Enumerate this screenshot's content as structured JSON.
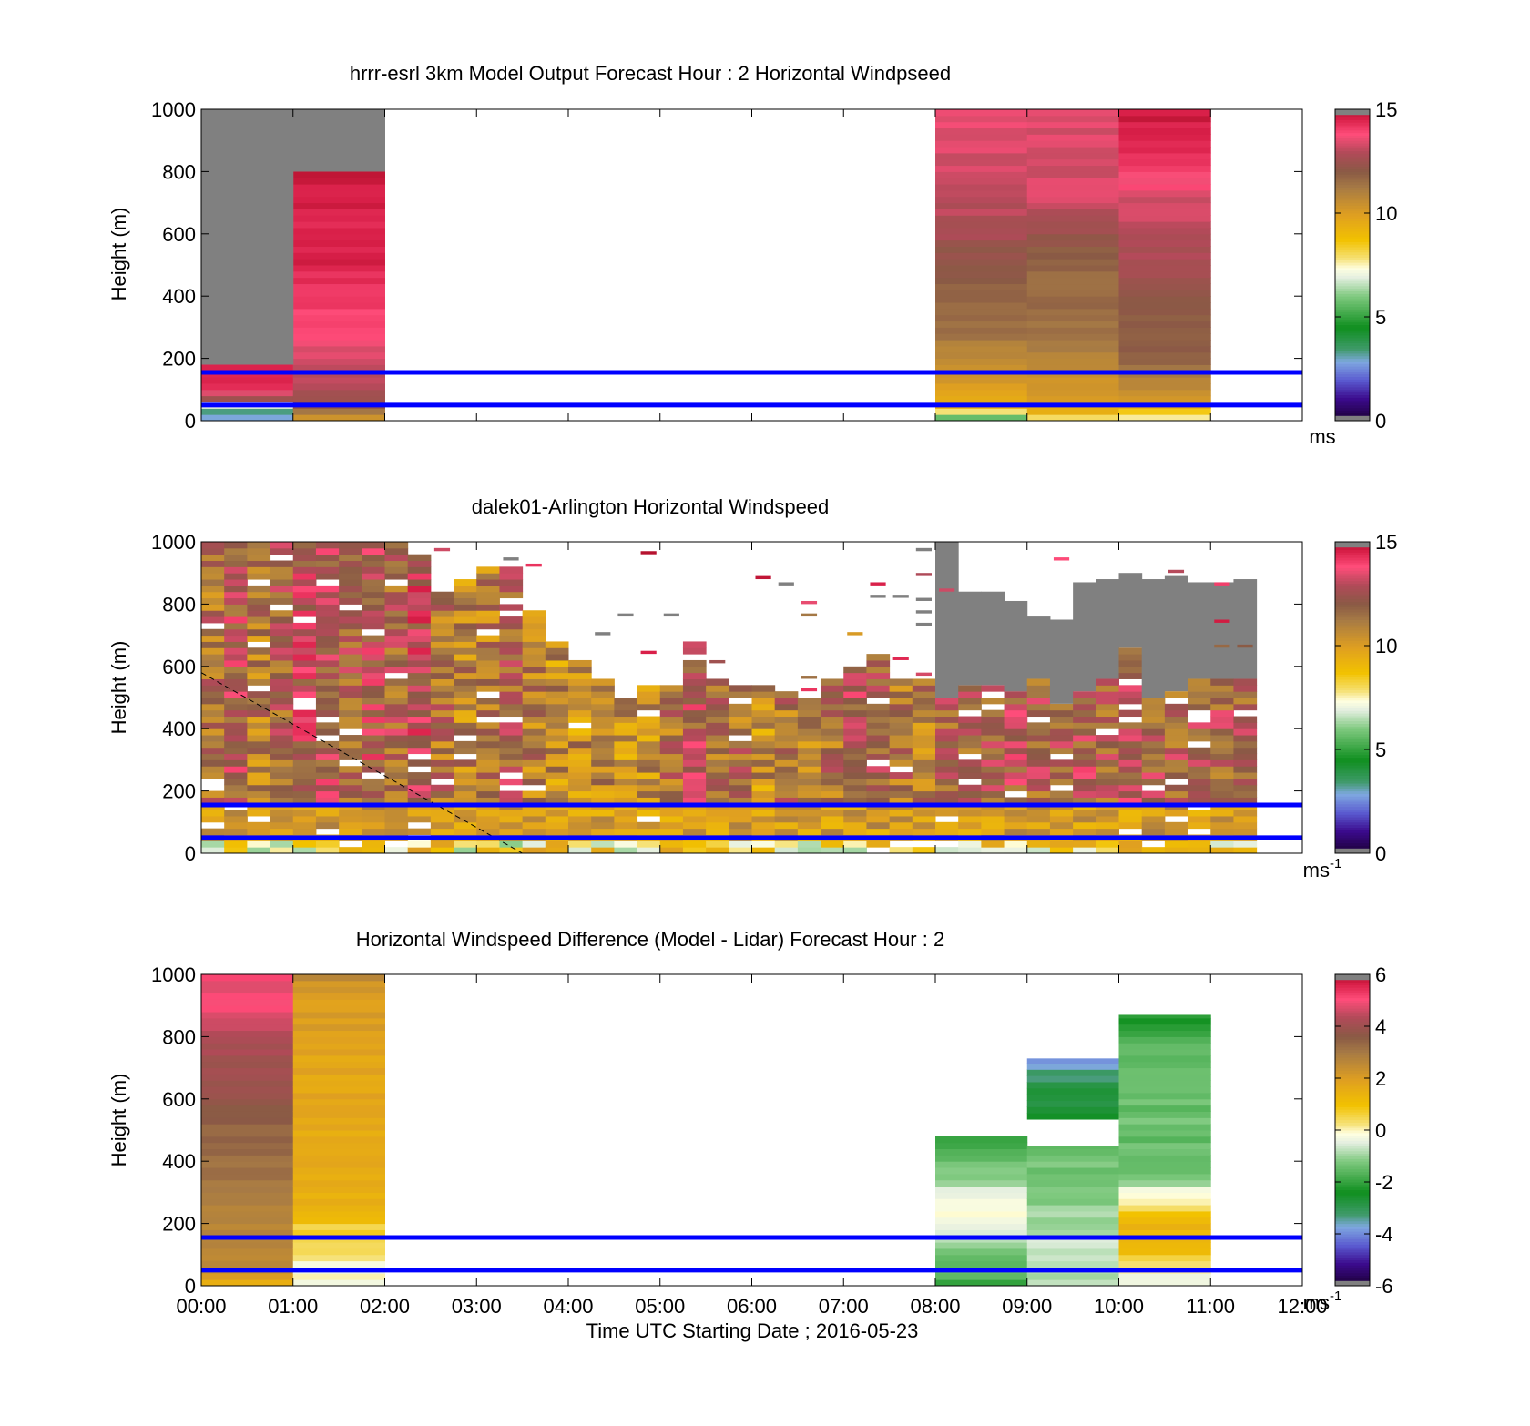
{
  "figure": {
    "xlabel": "Time UTC  Starting Date ; 2016-05-23",
    "xticks": [
      "00:00",
      "01:00",
      "02:00",
      "03:00",
      "04:00",
      "05:00",
      "06:00",
      "07:00",
      "08:00",
      "09:00",
      "10:00",
      "11:00",
      "12:00"
    ],
    "reference_lines_m": [
      50,
      155
    ],
    "reference_line_color": "#0000ff"
  },
  "chart_data": [
    {
      "type": "heatmap",
      "id": "model",
      "title": "hrrr-esrl 3km Model Output   Forecast Hour : 2 Horizontal Windpseed",
      "ylabel": "Height (m)",
      "ylim": [
        0,
        1000
      ],
      "yticks": [
        0,
        200,
        400,
        600,
        800,
        1000
      ],
      "colorbar": {
        "min": 0,
        "max": 15,
        "ticks": [
          0,
          5,
          10,
          15
        ],
        "unit": "ms",
        "unit_sup": ""
      },
      "columns": [
        {
          "t0": 0,
          "t1": 1,
          "top": 180,
          "fill_above": "#808080",
          "profile": [
            [
              0,
              1.5
            ],
            [
              20,
              4
            ],
            [
              40,
              2.5
            ],
            [
              60,
              12
            ],
            [
              80,
              13
            ],
            [
              100,
              14.2
            ],
            [
              130,
              14.6
            ],
            [
              160,
              14.6
            ],
            [
              180,
              14.8
            ]
          ]
        },
        {
          "t0": 1,
          "t1": 2,
          "top": 800,
          "fill_above": "#808080",
          "fill_above_top": 1000,
          "profile": [
            [
              0,
              10
            ],
            [
              20,
              11
            ],
            [
              60,
              12.5
            ],
            [
              120,
              13
            ],
            [
              200,
              13.3
            ],
            [
              350,
              14
            ],
            [
              500,
              14.5
            ],
            [
              700,
              14.6
            ],
            [
              800,
              14.7
            ]
          ]
        },
        {
          "t0": 8,
          "t1": 9,
          "top": 1000,
          "profile": [
            [
              0,
              5
            ],
            [
              20,
              6.5
            ],
            [
              40,
              9
            ],
            [
              60,
              9.5
            ],
            [
              100,
              10
            ],
            [
              200,
              10.7
            ],
            [
              300,
              11.5
            ],
            [
              400,
              11.8
            ],
            [
              550,
              12.3
            ],
            [
              600,
              12.8
            ],
            [
              700,
              13
            ],
            [
              800,
              13.3
            ],
            [
              1000,
              13.5
            ]
          ]
        },
        {
          "t0": 9,
          "t1": 10,
          "top": 1000,
          "profile": [
            [
              0,
              7
            ],
            [
              20,
              9
            ],
            [
              60,
              9.7
            ],
            [
              100,
              10.3
            ],
            [
              200,
              10.8
            ],
            [
              300,
              11.5
            ],
            [
              500,
              11.7
            ],
            [
              600,
              12.3
            ],
            [
              700,
              13.3
            ],
            [
              1000,
              13.4
            ]
          ]
        },
        {
          "t0": 10,
          "t1": 11,
          "top": 1000,
          "profile": [
            [
              0,
              7
            ],
            [
              20,
              8
            ],
            [
              60,
              10.2
            ],
            [
              100,
              10.6
            ],
            [
              200,
              11.8
            ],
            [
              400,
              12.1
            ],
            [
              500,
              12.6
            ],
            [
              700,
              13.3
            ],
            [
              800,
              14
            ],
            [
              900,
              14.6
            ],
            [
              1000,
              14.7
            ]
          ]
        }
      ]
    },
    {
      "type": "heatmap",
      "id": "lidar",
      "title": "dalek01-Arlington  Horizontal Windspeed",
      "ylabel": "Height (m)",
      "ylim": [
        0,
        1000
      ],
      "yticks": [
        0,
        200,
        400,
        600,
        800,
        1000
      ],
      "colorbar": {
        "min": 0,
        "max": 15,
        "ticks": [
          0,
          5,
          10,
          15
        ],
        "unit": "ms",
        "unit_sup": "-1"
      },
      "column_width_h": 0.25,
      "dashed_line": {
        "from": [
          0,
          580
        ],
        "to": [
          3.5,
          0
        ]
      },
      "columns": [
        {
          "t": 0.0,
          "top": 1000,
          "v": 11.5
        },
        {
          "t": 0.25,
          "top": 1000,
          "v": 12.5
        },
        {
          "t": 0.5,
          "top": 1000,
          "v": 11.0
        },
        {
          "t": 0.75,
          "top": 1000,
          "v": 12.0
        },
        {
          "t": 1.0,
          "top": 1000,
          "v": 13.0
        },
        {
          "t": 1.25,
          "top": 1000,
          "v": 12.5
        },
        {
          "t": 1.5,
          "top": 1000,
          "v": 12.0
        },
        {
          "t": 1.75,
          "top": 1000,
          "v": 12.8
        },
        {
          "t": 2.0,
          "top": 1000,
          "v": 12.0
        },
        {
          "t": 2.25,
          "top": 960,
          "v": 13.0
        },
        {
          "t": 2.5,
          "top": 830,
          "v": 11.5
        },
        {
          "t": 2.75,
          "top": 870,
          "v": 10.8
        },
        {
          "t": 3.0,
          "top": 920,
          "v": 11.0
        },
        {
          "t": 3.25,
          "top": 920,
          "v": 12.0
        },
        {
          "t": 3.5,
          "top": 780,
          "v": 11.0
        },
        {
          "t": 3.75,
          "top": 680,
          "v": 10.5
        },
        {
          "t": 4.0,
          "top": 620,
          "v": 10.5
        },
        {
          "t": 4.25,
          "top": 560,
          "v": 10.5
        },
        {
          "t": 4.5,
          "top": 500,
          "v": 10.5
        },
        {
          "t": 4.75,
          "top": 540,
          "v": 10.5
        },
        {
          "t": 5.0,
          "top": 540,
          "v": 11.5
        },
        {
          "t": 5.25,
          "top": 680,
          "v": 12.5
        },
        {
          "t": 5.5,
          "top": 550,
          "v": 11.5
        },
        {
          "t": 5.75,
          "top": 540,
          "v": 11.5
        },
        {
          "t": 6.0,
          "top": 540,
          "v": 10.5
        },
        {
          "t": 6.25,
          "top": 520,
          "v": 11.5
        },
        {
          "t": 6.5,
          "top": 500,
          "v": 11.0
        },
        {
          "t": 6.75,
          "top": 560,
          "v": 11.5
        },
        {
          "t": 7.0,
          "top": 600,
          "v": 12.5
        },
        {
          "t": 7.25,
          "top": 640,
          "v": 12.0
        },
        {
          "t": 7.5,
          "top": 560,
          "v": 11.5
        },
        {
          "t": 7.75,
          "top": 550,
          "v": 11.0
        },
        {
          "t": 8.0,
          "top": 500,
          "v": 12.0,
          "gray_to": 1000
        },
        {
          "t": 8.25,
          "top": 540,
          "v": 12.0,
          "gray_to": 840
        },
        {
          "t": 8.5,
          "top": 540,
          "v": 12.0,
          "gray_to": 840
        },
        {
          "t": 8.75,
          "top": 520,
          "v": 12.5,
          "gray_to": 810
        },
        {
          "t": 9.0,
          "top": 560,
          "v": 12.0,
          "gray_to": 760
        },
        {
          "t": 9.25,
          "top": 480,
          "v": 12.0,
          "gray_to": 750
        },
        {
          "t": 9.5,
          "top": 520,
          "v": 12.5,
          "gray_to": 870
        },
        {
          "t": 9.75,
          "top": 560,
          "v": 12.0,
          "gray_to": 880
        },
        {
          "t": 10.0,
          "top": 660,
          "v": 12.5,
          "gray_to": 900
        },
        {
          "t": 10.25,
          "top": 500,
          "v": 12.0,
          "gray_to": 880
        },
        {
          "t": 10.5,
          "top": 520,
          "v": 12.0,
          "gray_to": 890
        },
        {
          "t": 10.75,
          "top": 560,
          "v": 12.0,
          "gray_to": 870
        },
        {
          "t": 11.0,
          "top": 560,
          "v": 12.0,
          "gray_to": 870
        },
        {
          "t": 11.25,
          "top": 560,
          "v": 12.0,
          "gray_to": 880
        }
      ]
    },
    {
      "type": "heatmap",
      "id": "difference",
      "title": "Horizontal Windspeed Difference (Model - Lidar) Forecast Hour : 2",
      "ylabel": "Height (m)",
      "ylim": [
        0,
        1000
      ],
      "yticks": [
        0,
        200,
        400,
        600,
        800,
        1000
      ],
      "colorbar": {
        "min": -6,
        "max": 6,
        "ticks": [
          -6,
          -4,
          -2,
          0,
          2,
          4,
          6
        ],
        "unit": "ms",
        "unit_sup": "-1"
      },
      "columns": [
        {
          "t0": 0,
          "t1": 1,
          "top": 1000,
          "gap": [
            505,
            520
          ],
          "profile": [
            [
              0,
              1.5
            ],
            [
              40,
              2.2
            ],
            [
              100,
              2.6
            ],
            [
              200,
              2.7
            ],
            [
              300,
              3.0
            ],
            [
              400,
              3.2
            ],
            [
              500,
              3.4
            ],
            [
              520,
              3.6
            ],
            [
              600,
              3.7
            ],
            [
              700,
              3.9
            ],
            [
              800,
              4.4
            ],
            [
              900,
              5.0
            ],
            [
              1000,
              5.0
            ]
          ]
        },
        {
          "t0": 1,
          "t1": 2,
          "top": 1000,
          "profile": [
            [
              0,
              0
            ],
            [
              50,
              -0.3
            ],
            [
              100,
              0.2
            ],
            [
              150,
              0.4
            ],
            [
              200,
              0.8
            ],
            [
              250,
              1.5
            ],
            [
              300,
              1.6
            ],
            [
              500,
              1.7
            ],
            [
              700,
              1.8
            ],
            [
              900,
              2.0
            ],
            [
              970,
              2.3
            ],
            [
              1000,
              3.0
            ]
          ]
        },
        {
          "t0": 8,
          "t1": 9,
          "top": 480,
          "profile": [
            [
              0,
              -2
            ],
            [
              50,
              -1.6
            ],
            [
              100,
              -1.2
            ],
            [
              150,
              -0.8
            ],
            [
              200,
              -0.3
            ],
            [
              250,
              -0.2
            ],
            [
              300,
              -0.5
            ],
            [
              350,
              -1.2
            ],
            [
              420,
              -1.7
            ],
            [
              480,
              -1.8
            ]
          ]
        },
        {
          "t0": 9,
          "t1": 10,
          "top": 450,
          "profile": [
            [
              0,
              -0.8
            ],
            [
              60,
              -1.0
            ],
            [
              100,
              -0.7
            ],
            [
              150,
              -0.6
            ],
            [
              200,
              -0.9
            ],
            [
              300,
              -1.1
            ],
            [
              400,
              -1.3
            ],
            [
              450,
              -1.4
            ]
          ]
        },
        {
          "t0": 9,
          "t1": 10,
          "top": 730,
          "bottom": 535,
          "profile": [
            [
              535,
              -2.6
            ],
            [
              600,
              -2.8
            ],
            [
              650,
              -3.0
            ],
            [
              700,
              -3.5
            ],
            [
              730,
              -3.7
            ]
          ]
        },
        {
          "t0": 10,
          "t1": 11,
          "top": 870,
          "profile": [
            [
              0,
              -0.3
            ],
            [
              50,
              0
            ],
            [
              100,
              0.8
            ],
            [
              150,
              1.5
            ],
            [
              200,
              1.2
            ],
            [
              250,
              0.5
            ],
            [
              300,
              -0.3
            ],
            [
              350,
              -1.2
            ],
            [
              400,
              -1.6
            ],
            [
              500,
              -1.4
            ],
            [
              600,
              -1.5
            ],
            [
              700,
              -1.3
            ],
            [
              800,
              -1.6
            ],
            [
              850,
              -2.3
            ],
            [
              870,
              -2.3
            ]
          ]
        }
      ]
    }
  ]
}
